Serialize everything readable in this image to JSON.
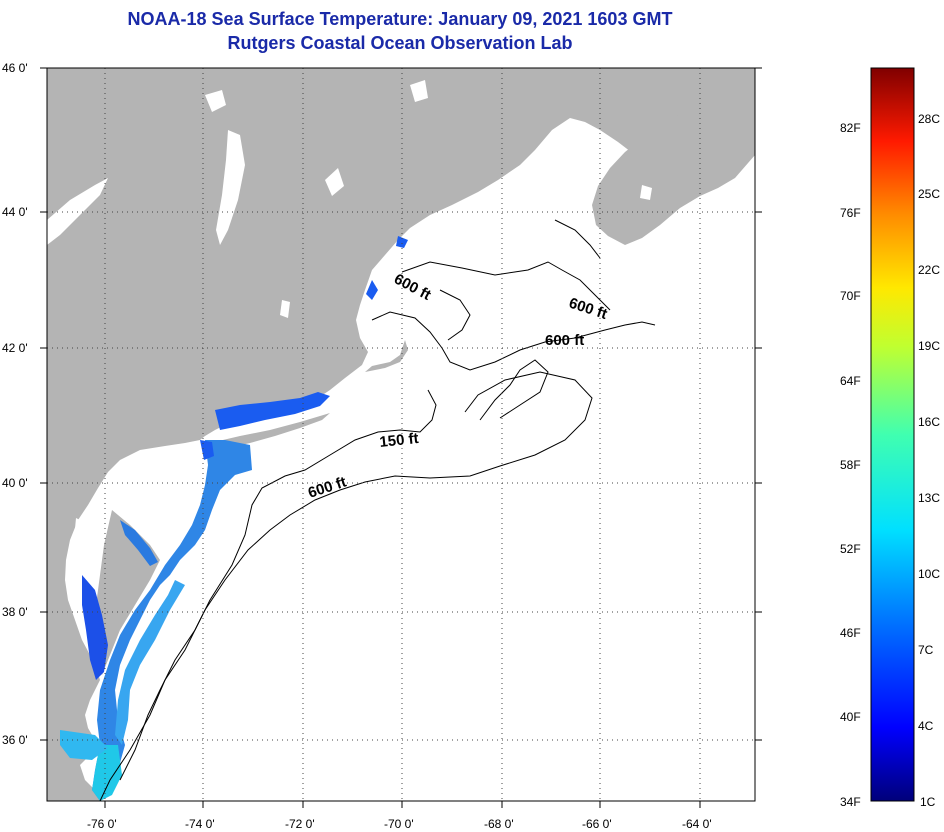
{
  "header": {
    "title_line1": "NOAA-18 Sea Surface Temperature:  January 09, 2021 1603 GMT",
    "title_line2": "Rutgers Coastal Ocean Observation Lab"
  },
  "map": {
    "lat_labels": [
      "46 0'",
      "44 0'",
      "42 0'",
      "40 0'",
      "38 0'",
      "36 0'"
    ],
    "lon_labels": [
      "-76 0'",
      "-74 0'",
      "-72 0'",
      "-70 0'",
      "-68 0'",
      "-66 0'",
      "-64 0'"
    ],
    "depth_labels": [
      "600 ft",
      "600 ft",
      "600 ft",
      "150 ft",
      "600 ft"
    ],
    "colors": {
      "land": "#b4b4b4",
      "ocean": "#ffffff",
      "contour": "#000000"
    }
  },
  "colorbar": {
    "fahrenheit": [
      "82F",
      "76F",
      "70F",
      "64F",
      "58F",
      "52F",
      "46F",
      "40F",
      "34F"
    ],
    "celsius": [
      "28C",
      "25C",
      "22C",
      "19C",
      "16C",
      "13C",
      "10C",
      "7C",
      "4C",
      "1C"
    ]
  }
}
